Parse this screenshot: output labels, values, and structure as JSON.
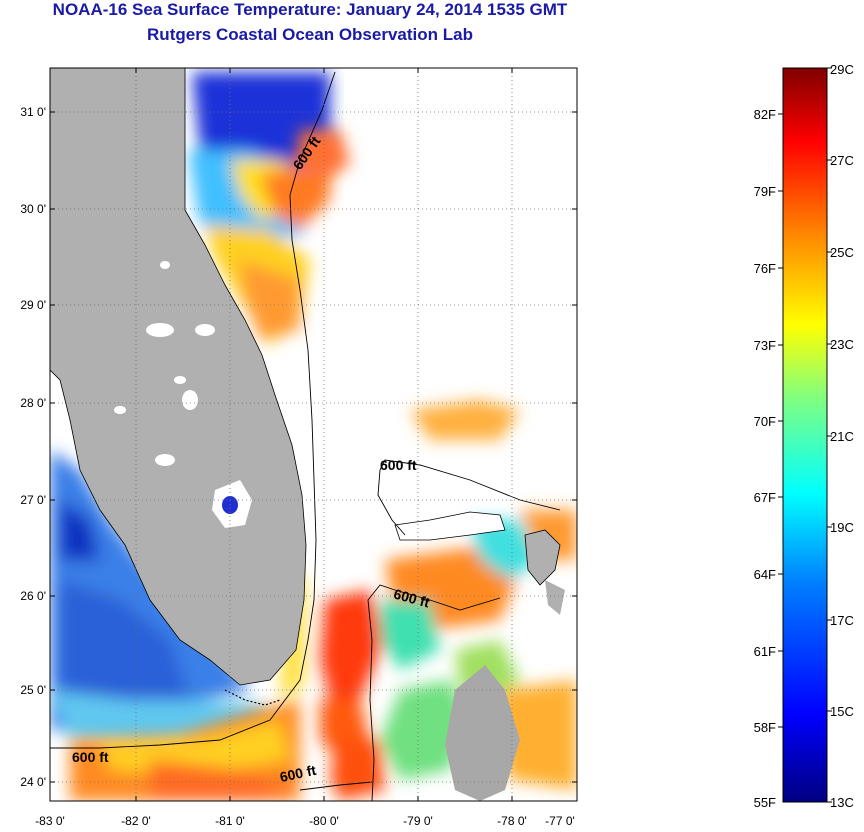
{
  "header": {
    "title": "NOAA-16 Sea Surface Temperature:  January 24, 2014 1535 GMT",
    "subtitle": "Rutgers Coastal Ocean Observation Lab"
  },
  "map": {
    "lat_labels": [
      "31 0'",
      "30 0'",
      "29 0'",
      "28 0'",
      "27 0'",
      "26 0'",
      "25 0'",
      "24 0'"
    ],
    "lon_labels": [
      "-83 0'",
      "-82 0'",
      "-81 0'",
      "-80 0'",
      "-79 0'",
      "-78 0'",
      "-77 0'"
    ],
    "contour_labels": [
      "600 ft",
      "600 ft",
      "600 ft",
      "600 ft",
      "600 ft"
    ],
    "colors": {
      "land": "#b0b0b0",
      "cloud": "#ffffff",
      "coast": "#000000"
    }
  },
  "colorbar": {
    "celsius_labels": [
      "29C",
      "27C",
      "25C",
      "23C",
      "21C",
      "19C",
      "17C",
      "15C",
      "13C"
    ],
    "fahrenheit_labels": [
      "82F",
      "79F",
      "76F",
      "73F",
      "70F",
      "67F",
      "64F",
      "61F",
      "58F",
      "55F"
    ],
    "colors": [
      "#000080",
      "#0000ff",
      "#0080ff",
      "#00ffff",
      "#80ff80",
      "#ffff00",
      "#ff8000",
      "#ff0000",
      "#800000"
    ]
  }
}
